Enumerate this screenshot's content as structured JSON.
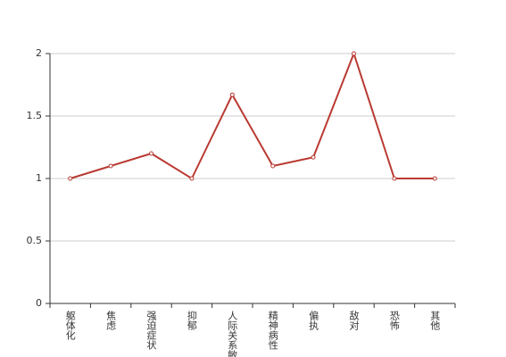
{
  "chart_data": {
    "type": "line",
    "categories": [
      "躯体化",
      "焦虑",
      "强迫症状",
      "抑郁",
      "人际关系敏感",
      "精神病性",
      "偏执",
      "敌对",
      "恐怖",
      "其他"
    ],
    "values": [
      1,
      1.1,
      1.2,
      1,
      1.67,
      1.1,
      1.17,
      2,
      1,
      1
    ],
    "color": "#b93a32",
    "ylim": [
      0,
      2
    ],
    "yticks": [
      0,
      0.5,
      1,
      1.5,
      2
    ],
    "grid": true
  }
}
